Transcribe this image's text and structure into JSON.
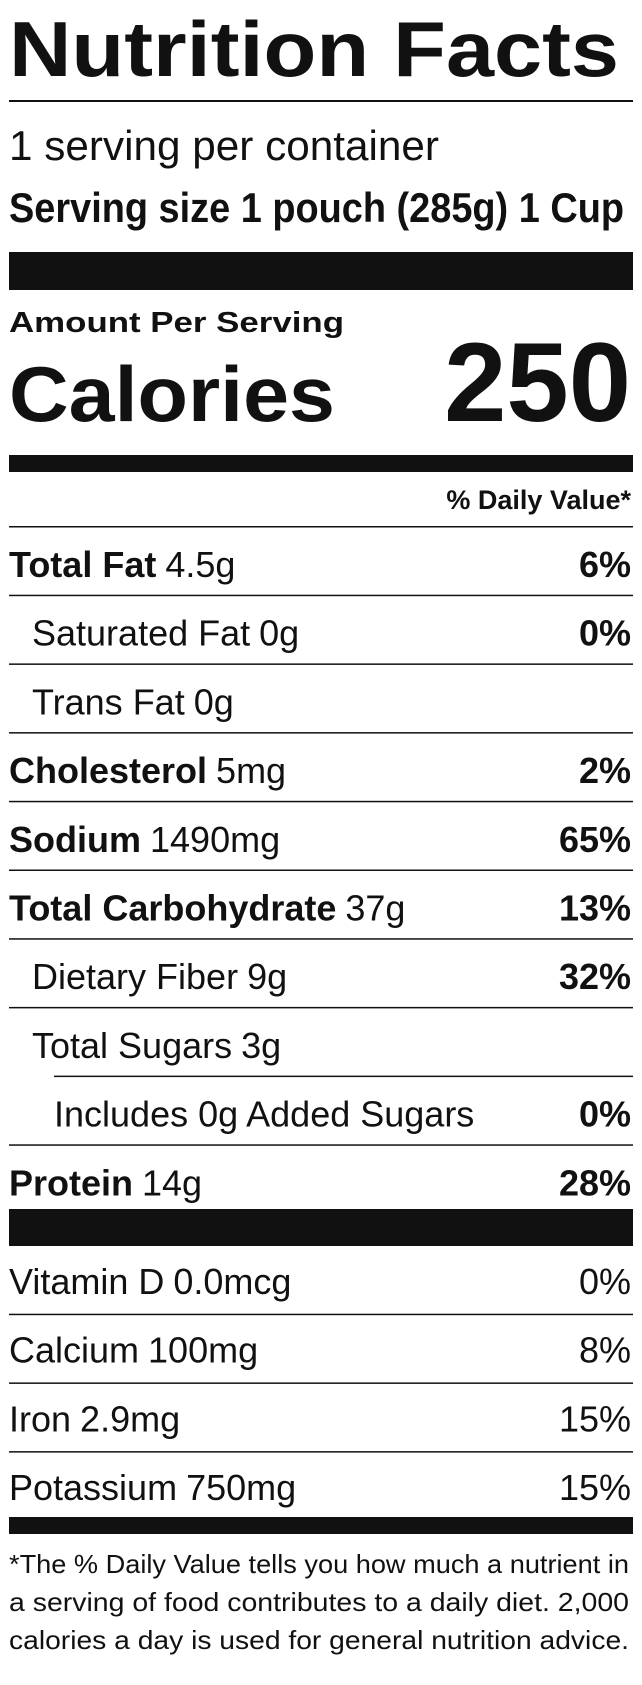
{
  "title": "Nutrition Facts",
  "servings": "1 serving per container",
  "serving_size": "Serving size 1 pouch (285g) 1 Cup",
  "amount_per_serving": "Amount Per Serving",
  "calories": {
    "label": "Calories",
    "value": "250"
  },
  "daily_value_header": "% Daily Value*",
  "nutrients": [
    {
      "name": "Total Fat",
      "amount": "4.5g",
      "dv": "6%"
    },
    {
      "name": "Saturated Fat",
      "amount": "0g",
      "dv": "0%"
    },
    {
      "name": "Trans Fat",
      "amount": "0g"
    },
    {
      "name": "Cholesterol",
      "amount": "5mg",
      "dv": "2%"
    },
    {
      "name": "Sodium",
      "amount": "1490mg",
      "dv": "65%"
    },
    {
      "name": "Total Carbohydrate",
      "amount": "37g",
      "dv": "13%"
    },
    {
      "name": "Dietary Fiber",
      "amount": "9g",
      "dv": "32%"
    },
    {
      "name": "Total Sugars",
      "amount": "3g"
    },
    {
      "name": "Includes 0g Added Sugars",
      "dv": "0%"
    },
    {
      "name": "Protein",
      "amount": "14g",
      "dv": "28%"
    }
  ],
  "vitamins": [
    {
      "name": "Vitamin D",
      "amount": "0.0mcg",
      "dv": "0%"
    },
    {
      "name": "Calcium",
      "amount": "100mg",
      "dv": "8%"
    },
    {
      "name": "Iron",
      "amount": "2.9mg",
      "dv": "15%"
    },
    {
      "name": "Potassium",
      "amount": "750mg",
      "dv": "15%"
    }
  ],
  "footnote": [
    "*The % Daily Value tells you how much a nutrient in",
    "a serving of food contributes to a daily diet. 2,000",
    "calories a day is used for general nutrition advice."
  ]
}
